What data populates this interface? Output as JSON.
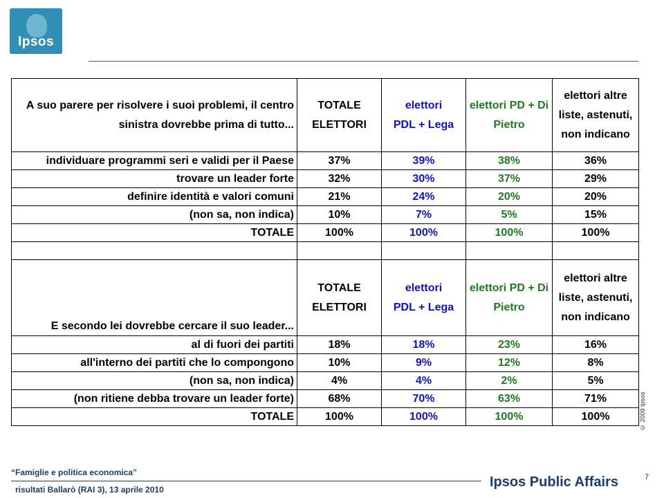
{
  "logo": {
    "text": "Ipsos"
  },
  "q1": {
    "question_line1": "A suo parere per risolvere i suoi problemi, il centro",
    "question_line2": "sinistra dovrebbe prima di tutto...",
    "headers": [
      {
        "line1": "TOTALE",
        "line2": "ELETTORI",
        "line3": ""
      },
      {
        "line1": "elettori",
        "line2": "PDL + Lega",
        "line3": ""
      },
      {
        "line1": "elettori PD + Di",
        "line2": "Pietro",
        "line3": ""
      },
      {
        "line1": "elettori altre",
        "line2": "liste, astenuti,",
        "line3": "non indicano"
      }
    ],
    "rows": [
      {
        "label": "individuare programmi seri e validi per il Paese",
        "values": [
          "37%",
          "39%",
          "38%",
          "36%"
        ]
      },
      {
        "label": "trovare un leader forte",
        "values": [
          "32%",
          "30%",
          "37%",
          "29%"
        ]
      },
      {
        "label": "definire identità e valori comuni",
        "values": [
          "21%",
          "24%",
          "20%",
          "20%"
        ]
      },
      {
        "label": "(non sa, non indica)",
        "values": [
          "10%",
          "7%",
          "5%",
          "15%"
        ]
      },
      {
        "label": "TOTALE",
        "values": [
          "100%",
          "100%",
          "100%",
          "100%"
        ]
      }
    ]
  },
  "q2": {
    "question": "E secondo lei dovrebbe cercare il suo leader...",
    "headers": [
      {
        "line1": "TOTALE",
        "line2": "ELETTORI",
        "line3": ""
      },
      {
        "line1": "elettori",
        "line2": "PDL + Lega",
        "line3": ""
      },
      {
        "line1": "elettori PD + Di",
        "line2": "Pietro",
        "line3": ""
      },
      {
        "line1": "elettori altre",
        "line2": "liste, astenuti,",
        "line3": "non indicano"
      }
    ],
    "rows": [
      {
        "label": "al di fuori dei partiti",
        "values": [
          "18%",
          "18%",
          "23%",
          "16%"
        ]
      },
      {
        "label": "all'interno dei partiti che lo compongono",
        "values": [
          "10%",
          "9%",
          "12%",
          "8%"
        ]
      },
      {
        "label": "(non sa, non indica)",
        "values": [
          "4%",
          "4%",
          "2%",
          "5%"
        ]
      },
      {
        "label": "(non ritiene debba trovare un leader forte)",
        "values": [
          "68%",
          "70%",
          "63%",
          "71%"
        ]
      },
      {
        "label": "TOTALE",
        "values": [
          "100%",
          "100%",
          "100%",
          "100%"
        ]
      }
    ]
  },
  "colors": {
    "pdl": "#1010c8",
    "pd": "#1f7a1f",
    "brand": "#1a3d6e"
  },
  "copyright": "© 2009 Ipsos",
  "footer": {
    "title": "“Famiglie e politica economica”",
    "subtitle": "risultati Ballarò (RAI 3), 13 aprile 2010",
    "page": "7",
    "brand": "Ipsos Public Affairs"
  }
}
